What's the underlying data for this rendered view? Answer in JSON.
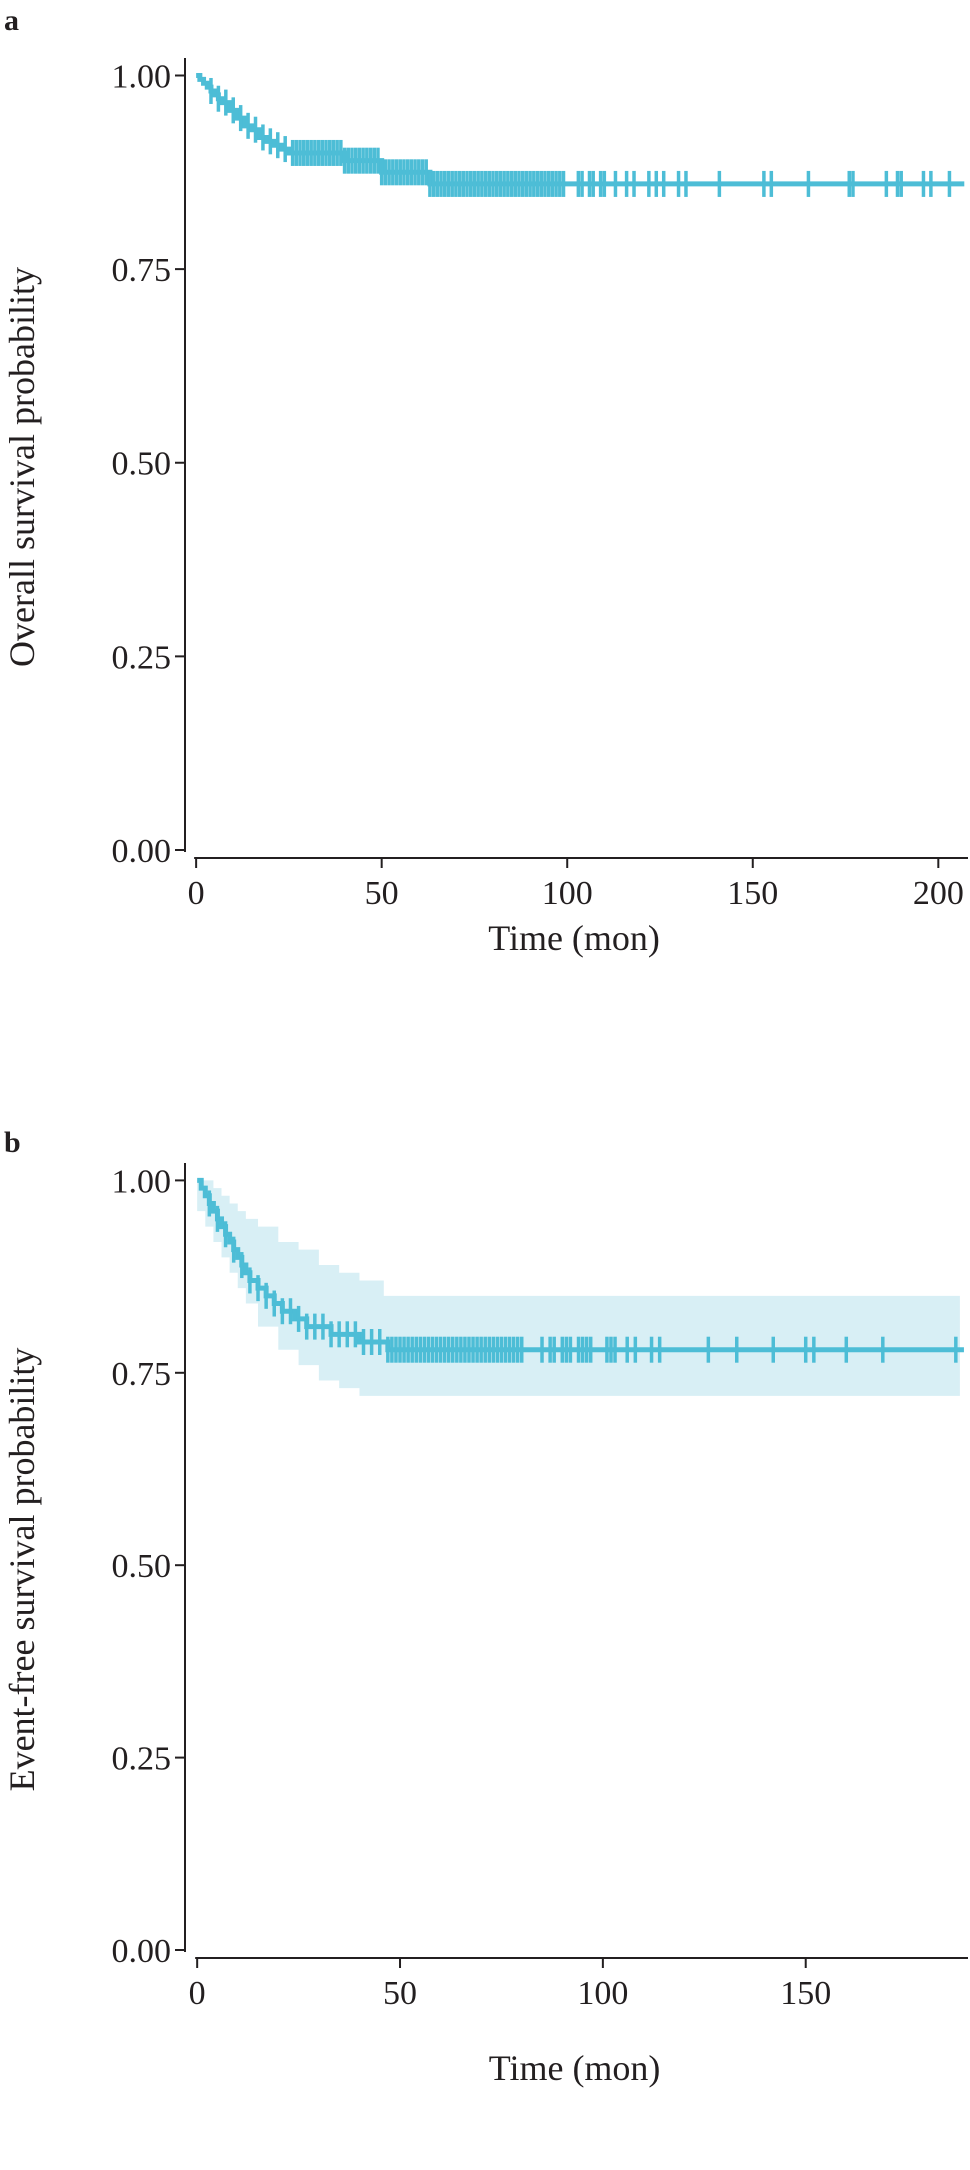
{
  "chart_data": [
    {
      "panel_label": "a",
      "type": "line",
      "xlabel": "Time (mon)",
      "ylabel": "Overall survival probability",
      "xlim": [
        -3,
        208
      ],
      "ylim": [
        0,
        1.02
      ],
      "xticks": [
        0,
        50,
        100,
        150,
        200
      ],
      "xtick_labels": [
        "0",
        "50",
        "100",
        "150",
        "200"
      ],
      "yticks": [
        0,
        0.25,
        0.5,
        0.75,
        1.0
      ],
      "ytick_labels": [
        "0.00",
        "0.25",
        "0.50",
        "0.75",
        "1.00"
      ],
      "color": "#4dbdd6",
      "confidence_band": null,
      "series": [
        {
          "x": [
            0,
            1,
            2,
            3,
            4,
            5,
            6,
            7,
            9,
            11,
            13,
            15,
            17,
            19,
            21,
            23,
            25,
            28,
            40,
            50,
            63,
            207
          ],
          "y": [
            1.0,
            0.995,
            0.99,
            0.985,
            0.98,
            0.975,
            0.97,
            0.965,
            0.955,
            0.945,
            0.935,
            0.93,
            0.92,
            0.915,
            0.91,
            0.905,
            0.9,
            0.9,
            0.89,
            0.875,
            0.86,
            0.86
          ]
        }
      ],
      "censor_marks": [
        4,
        6,
        8,
        10,
        12,
        14,
        16,
        18,
        20,
        22,
        24,
        26,
        27,
        28,
        29,
        30,
        31,
        32,
        33,
        34,
        35,
        36,
        37,
        38,
        39,
        40,
        41,
        42,
        43,
        44,
        45,
        46,
        47,
        48,
        49,
        50,
        51,
        52,
        53,
        54,
        55,
        56,
        57,
        58,
        59,
        60,
        61,
        62,
        63,
        64,
        65,
        66,
        67,
        68,
        69,
        70,
        71,
        72,
        73,
        74,
        75,
        76,
        77,
        78,
        79,
        80,
        81,
        82,
        83,
        84,
        85,
        86,
        87,
        88,
        89,
        90,
        91,
        92,
        93,
        94,
        95,
        96,
        97,
        98,
        99,
        103,
        104,
        106,
        107,
        109,
        110,
        113,
        116,
        118,
        122,
        124,
        126,
        130,
        132,
        141,
        153,
        155,
        165,
        176,
        177,
        186,
        189,
        190,
        196,
        198,
        203
      ]
    },
    {
      "panel_label": "b",
      "type": "line",
      "xlabel": "Time (mon)",
      "ylabel": "Event-free survival probability",
      "xlim": [
        -3,
        190
      ],
      "ylim": [
        0,
        1.02
      ],
      "xticks": [
        0,
        50,
        100,
        150
      ],
      "xtick_labels": [
        "0",
        "50",
        "100",
        "150"
      ],
      "yticks": [
        0,
        0.25,
        0.5,
        0.75,
        1.0
      ],
      "ytick_labels": [
        "0.00",
        "0.25",
        "0.50",
        "0.75",
        "1.00"
      ],
      "color": "#4dbdd6",
      "band_color": "#d8eff5",
      "series": [
        {
          "x": [
            0,
            1,
            2,
            3,
            4,
            5,
            6,
            7,
            8,
            9,
            10,
            11,
            12,
            13,
            15,
            17,
            19,
            21,
            24,
            27,
            30,
            33,
            36,
            40,
            44,
            47,
            189
          ],
          "y": [
            1.0,
            0.99,
            0.98,
            0.97,
            0.96,
            0.95,
            0.94,
            0.93,
            0.92,
            0.91,
            0.9,
            0.89,
            0.88,
            0.87,
            0.86,
            0.85,
            0.84,
            0.83,
            0.82,
            0.81,
            0.81,
            0.8,
            0.8,
            0.79,
            0.79,
            0.78,
            0.78
          ]
        }
      ],
      "confidence_band": {
        "x": [
          0,
          2,
          4,
          6,
          8,
          10,
          12,
          15,
          20,
          25,
          30,
          35,
          40,
          46,
          188
        ],
        "lower": [
          1.0,
          0.96,
          0.94,
          0.92,
          0.9,
          0.88,
          0.86,
          0.84,
          0.81,
          0.78,
          0.76,
          0.74,
          0.73,
          0.72,
          0.72
        ],
        "upper": [
          1.0,
          1.0,
          0.99,
          0.98,
          0.97,
          0.96,
          0.95,
          0.94,
          0.92,
          0.91,
          0.89,
          0.88,
          0.87,
          0.85,
          0.85
        ]
      },
      "censor_marks": [
        3,
        5,
        7,
        9,
        11,
        13,
        15,
        17,
        19,
        21,
        23,
        25,
        27,
        29,
        31,
        33,
        35,
        37,
        39,
        41,
        43,
        45,
        47,
        48,
        49,
        50,
        51,
        52,
        53,
        54,
        55,
        56,
        57,
        58,
        59,
        60,
        61,
        62,
        63,
        64,
        65,
        66,
        67,
        68,
        69,
        70,
        71,
        72,
        73,
        74,
        75,
        76,
        77,
        78,
        79,
        80,
        85,
        87,
        88,
        90,
        91,
        92,
        94,
        95,
        96,
        97,
        101,
        102,
        103,
        106,
        108,
        112,
        114,
        126,
        133,
        142,
        150,
        152,
        160,
        169,
        187
      ]
    }
  ]
}
